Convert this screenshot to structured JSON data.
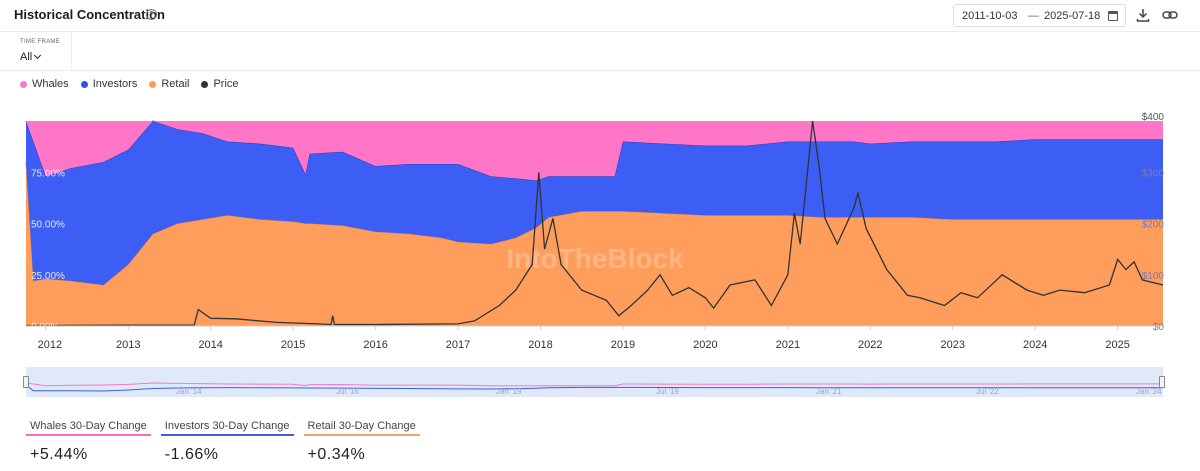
{
  "header": {
    "title": "Historical Concentration",
    "help_icon": "question-circle-icon",
    "date_start": "2011-10-03",
    "date_separator": "—",
    "date_end": "2025-07-18",
    "calendar_icon": "calendar-icon",
    "download_icon": "download-icon",
    "link_icon": "link-icon"
  },
  "timeframe": {
    "label": "TIME FRAME",
    "value": "All"
  },
  "legend": [
    {
      "name": "Whales",
      "color": "#ff77c8"
    },
    {
      "name": "Investors",
      "color": "#2f4ff2"
    },
    {
      "name": "Retail",
      "color": "#ff9d5c"
    },
    {
      "name": "Price",
      "color": "#333333"
    }
  ],
  "watermark": "IntoTheBlock",
  "stats": [
    {
      "label": "Whales 30-Day Change",
      "value": "+5.44%",
      "color": "#f06fc2"
    },
    {
      "label": "Investors 30-Day Change",
      "value": "-1.66%",
      "color": "#3f5fe0"
    },
    {
      "label": "Retail 30-Day Change",
      "value": "+0.34%",
      "color": "#f5a364"
    }
  ],
  "navigator": {
    "tick_labels": [
      "Jan '14",
      "Jul '16",
      "Jan '19",
      "Jul '19",
      "Jan '21",
      "Jul '22",
      "Jan '24"
    ]
  },
  "chart_data": {
    "type": "area",
    "stacked_percent": true,
    "x_ticks": [
      "2012",
      "2013",
      "2014",
      "2015",
      "2016",
      "2017",
      "2018",
      "2019",
      "2020",
      "2021",
      "2022",
      "2023",
      "2024",
      "2025"
    ],
    "y_left_ticks": [
      "0.00%",
      "25.00%",
      "50.00%",
      "75.00%"
    ],
    "y_right_ticks": [
      "$0",
      "$100",
      "$200",
      "$300",
      "$400"
    ],
    "y_left_range": [
      0,
      100
    ],
    "y_right_range": [
      0,
      400
    ],
    "x": [
      2011.76,
      2011.85,
      2012.0,
      2012.3,
      2012.7,
      2013.0,
      2013.3,
      2013.6,
      2013.9,
      2014.2,
      2014.6,
      2015.0,
      2015.15,
      2015.2,
      2015.6,
      2016.0,
      2016.4,
      2016.8,
      2017.0,
      2017.4,
      2017.7,
      2017.95,
      2018.1,
      2018.5,
      2018.9,
      2019.0,
      2019.5,
      2020.0,
      2020.5,
      2021.0,
      2021.4,
      2021.8,
      2022.0,
      2022.5,
      2023.0,
      2023.5,
      2024.0,
      2024.5,
      2025.0,
      2025.55
    ],
    "series": [
      {
        "name": "Retail",
        "values": [
          80,
          22,
          23,
          22,
          20,
          30,
          45,
          50,
          52,
          54,
          52,
          51,
          50,
          50,
          49,
          46,
          45,
          43,
          41,
          40,
          43,
          48,
          53,
          56,
          56,
          56,
          55,
          54,
          54,
          54,
          53,
          53,
          53,
          53,
          52,
          52,
          52,
          52,
          52,
          52
        ]
      },
      {
        "name": "Investors",
        "values": [
          20,
          68,
          50,
          55,
          60,
          56,
          55,
          46,
          42,
          36,
          37,
          36,
          24,
          34,
          36,
          32,
          34,
          36,
          38,
          33,
          29,
          23,
          20,
          17,
          17,
          34,
          34,
          34,
          34,
          36,
          37,
          37,
          36,
          37,
          38,
          38,
          39,
          39,
          39,
          39
        ]
      },
      {
        "name": "Whales",
        "values": [
          0,
          10,
          27,
          23,
          20,
          14,
          0,
          4,
          6,
          10,
          11,
          13,
          26,
          16,
          15,
          22,
          21,
          21,
          21,
          27,
          28,
          29,
          27,
          27,
          27,
          10,
          11,
          12,
          12,
          10,
          10,
          10,
          11,
          10,
          10,
          10,
          9,
          9,
          9,
          9
        ]
      }
    ],
    "price": {
      "name": "Price",
      "x": [
        2011.76,
        2013.8,
        2013.85,
        2014.0,
        2014.3,
        2014.8,
        2015.3,
        2015.46,
        2015.48,
        2015.5,
        2016.0,
        2017.0,
        2017.2,
        2017.5,
        2017.7,
        2017.9,
        2017.98,
        2018.05,
        2018.15,
        2018.25,
        2018.5,
        2018.8,
        2018.95,
        2019.1,
        2019.3,
        2019.45,
        2019.6,
        2019.8,
        2020.0,
        2020.1,
        2020.3,
        2020.6,
        2020.8,
        2021.0,
        2021.08,
        2021.15,
        2021.3,
        2021.38,
        2021.45,
        2021.6,
        2021.8,
        2021.85,
        2021.95,
        2022.2,
        2022.45,
        2022.6,
        2022.9,
        2023.1,
        2023.3,
        2023.6,
        2023.9,
        2024.1,
        2024.3,
        2024.6,
        2024.9,
        2025.0,
        2025.1,
        2025.2,
        2025.3,
        2025.55
      ],
      "values": [
        1,
        2,
        32,
        15,
        14,
        7,
        4,
        3,
        20,
        3,
        3,
        4,
        10,
        40,
        70,
        120,
        300,
        150,
        210,
        120,
        70,
        50,
        20,
        40,
        70,
        100,
        60,
        75,
        55,
        35,
        80,
        90,
        40,
        100,
        220,
        160,
        400,
        310,
        210,
        160,
        230,
        260,
        190,
        110,
        60,
        55,
        40,
        65,
        55,
        100,
        70,
        60,
        70,
        65,
        80,
        130,
        110,
        125,
        90,
        80
      ]
    }
  }
}
